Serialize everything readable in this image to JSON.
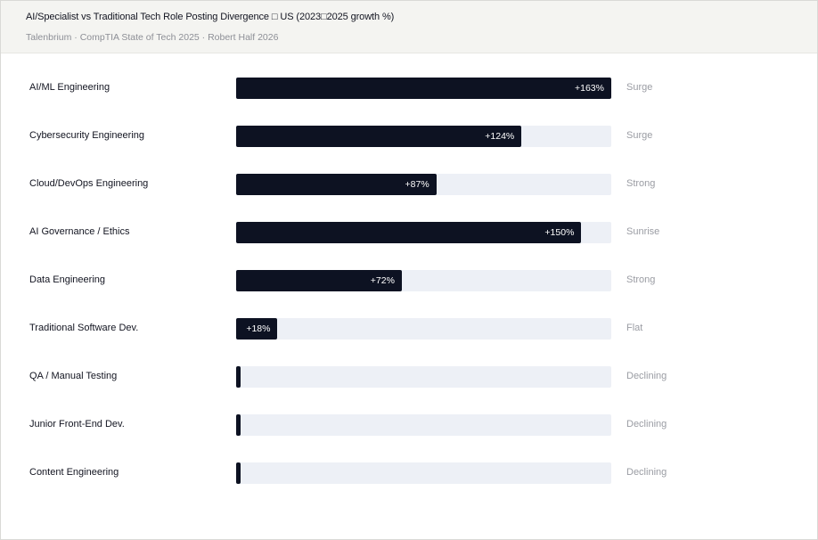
{
  "header": {
    "title": "AI/Specialist vs Traditional Tech Role Posting Divergence □ US (2023□2025 growth %)",
    "subtitle": "Talenbrium · CompTIA State of Tech 2025 · Robert Half 2026"
  },
  "chart_data": {
    "type": "bar",
    "orientation": "horizontal",
    "title": "AI/Specialist vs Traditional Tech Role Posting Divergence □ US (2023□2025 growth %)",
    "xlim": [
      0,
      163
    ],
    "categories": [
      "AI/ML Engineering",
      "Cybersecurity Engineering",
      "Cloud/DevOps Engineering",
      "AI Governance / Ethics",
      "Data Engineering",
      "Traditional Software Dev.",
      "QA / Manual Testing",
      "Junior Front-End Dev.",
      "Content Engineering"
    ],
    "values": [
      163,
      124,
      87,
      150,
      72,
      18,
      1,
      1,
      1
    ],
    "value_labels": [
      "+163%",
      "+124%",
      "+87%",
      "+150%",
      "+72%",
      "+18%",
      "",
      "",
      ""
    ],
    "statuses": [
      "Surge",
      "Surge",
      "Strong",
      "Sunrise",
      "Strong",
      "Flat",
      "Declining",
      "Declining",
      "Declining"
    ],
    "colors": {
      "bar": "#0d1222",
      "track": "#edf0f6",
      "status": "#9a9ca3"
    }
  }
}
